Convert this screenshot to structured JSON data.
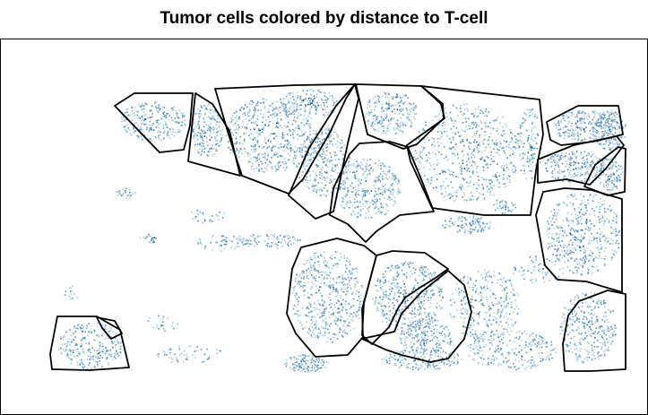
{
  "chart_data": {
    "type": "scatter",
    "title": "Tumor cells colored by distance to T-cell",
    "xlabel": "",
    "ylabel": "",
    "grid": false,
    "legend": "none",
    "colors": {
      "light": "#a9c9dc",
      "mid": "#5c96bb",
      "dark": "#1c5d8d",
      "outline": "#000000",
      "frame": "#000000"
    }
  }
}
